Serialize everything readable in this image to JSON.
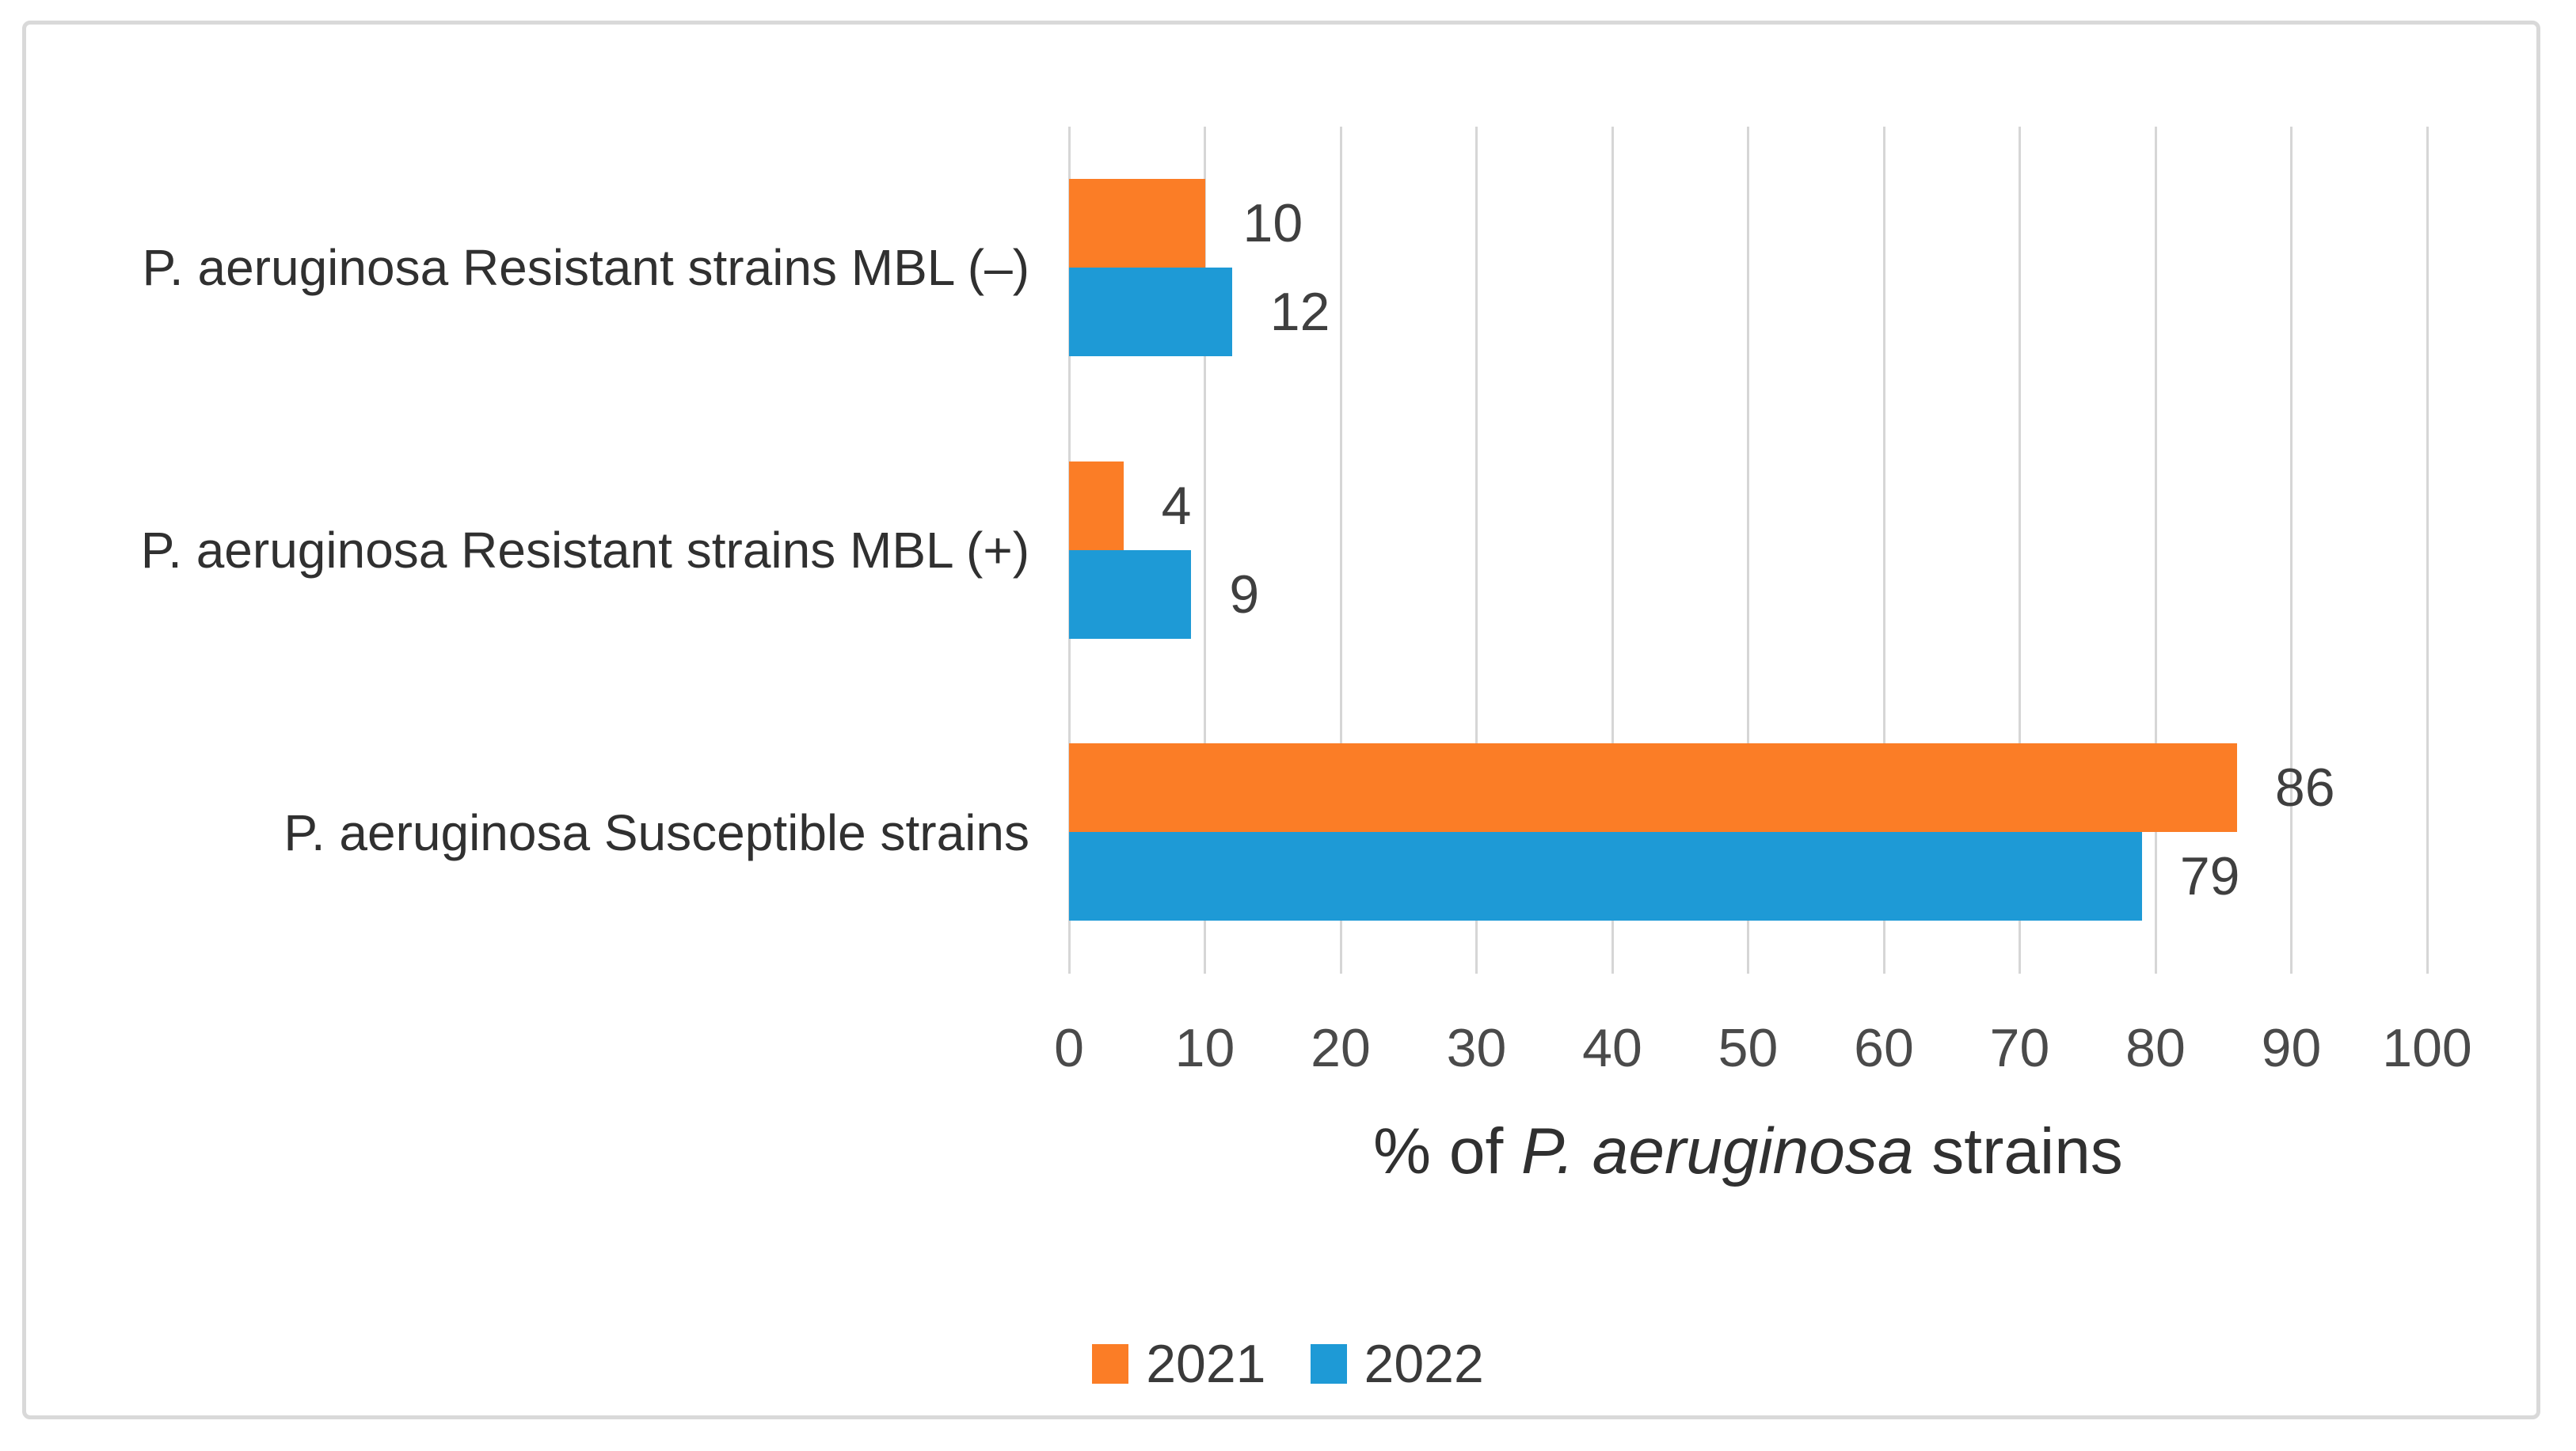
{
  "figure": {
    "background": "#FFFFFF",
    "border_color": "#D9D9D9"
  },
  "chart_data": {
    "type": "bar",
    "orientation": "horizontal",
    "title": "",
    "categories": [
      "P. aeruginosa Resistant strains MBL (–)",
      "P. aeruginosa Resistant strains MBL (+)",
      "P. aeruginosa Susceptible strains"
    ],
    "series": [
      {
        "name": "2021",
        "color": "#FB7D26",
        "values": [
          10,
          4,
          86
        ]
      },
      {
        "name": "2022",
        "color": "#1E9AD6",
        "values": [
          12,
          9,
          79
        ]
      }
    ],
    "value_labels": [
      {
        "category_index": 0,
        "labels": [
          10,
          12
        ]
      },
      {
        "category_index": 1,
        "labels": [
          4,
          9
        ]
      },
      {
        "category_index": 2,
        "labels": [
          86,
          79
        ]
      }
    ],
    "xlabel": "% of P. aeruginosa strains",
    "xlabel_parts": {
      "prefix": "% of ",
      "italic": "P. aeruginosa",
      "suffix": " strains"
    },
    "xticks": [
      0,
      10,
      20,
      30,
      40,
      50,
      60,
      70,
      80,
      90,
      100
    ],
    "xlim": [
      0,
      100
    ],
    "grid": "vertical",
    "gridline_color": "#D6D6D6",
    "text_color": "#3A3A3A",
    "legend_position": "bottom"
  },
  "legend": {
    "items": [
      {
        "label": "2021",
        "color": "#FB7D26"
      },
      {
        "label": "2022",
        "color": "#1E9AD6"
      }
    ]
  }
}
